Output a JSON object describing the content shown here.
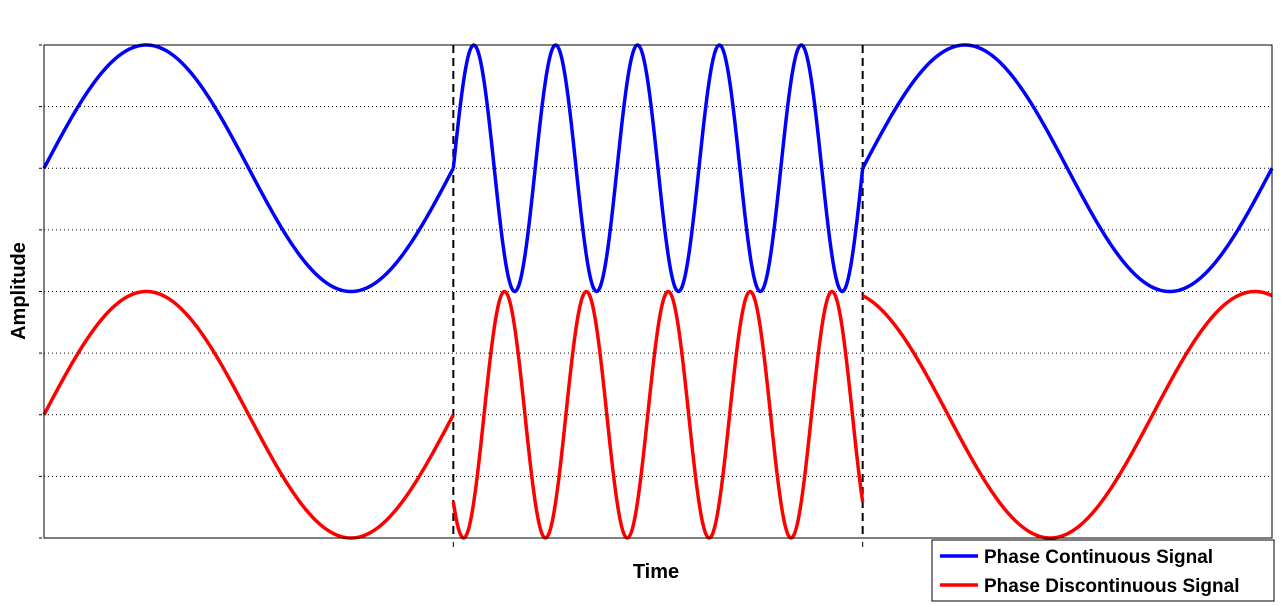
{
  "chart_data": {
    "type": "line",
    "title": "",
    "xlabel": "Time",
    "ylabel": "Amplitude",
    "xlim": [
      0,
      6
    ],
    "ylim": [
      -3.5,
      0.5
    ],
    "grid": "horizontal dotted",
    "segment_boundaries": [
      2,
      4
    ],
    "legend_position": "bottom-right",
    "colors": {
      "continuous": "#0000ff",
      "discontinuous": "#ff0000",
      "boundary": "#000000",
      "grid": "#000000"
    },
    "series": [
      {
        "name": "Phase Continuous Signal",
        "color": "#0000ff",
        "segments": [
          {
            "x_start": 0,
            "x_end": 2,
            "cycles": 1,
            "phase_start_deg": 0,
            "offset": -0.5,
            "amplitude": 1
          },
          {
            "x_start": 2,
            "x_end": 4,
            "cycles": 5,
            "phase_start_deg": 0,
            "offset": -0.5,
            "amplitude": 1
          },
          {
            "x_start": 4,
            "x_end": 6,
            "cycles": 1,
            "phase_start_deg": 0,
            "offset": -0.5,
            "amplitude": 1
          }
        ]
      },
      {
        "name": "Phase Discontinuous Signal",
        "color": "#ff0000",
        "segments": [
          {
            "x_start": 0,
            "x_end": 2,
            "cycles": 1,
            "phase_start_deg": 0,
            "offset": -2.5,
            "amplitude": 1
          },
          {
            "x_start": 2,
            "x_end": 4,
            "cycles": 5,
            "phase_start_deg": 225,
            "offset": -2.5,
            "amplitude": 1
          },
          {
            "x_start": 4,
            "x_end": 6,
            "cycles": 1,
            "phase_start_deg": 105,
            "offset": -2.5,
            "amplitude": 1
          }
        ]
      }
    ]
  }
}
